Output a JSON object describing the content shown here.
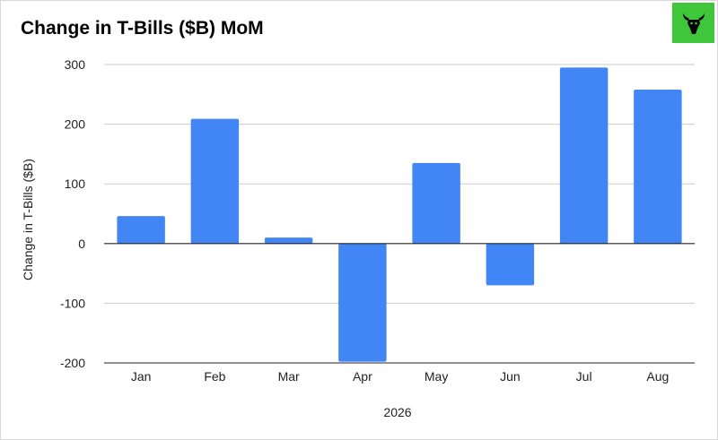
{
  "colors": {
    "bar": "#4285f4",
    "grid": "#cccccc",
    "axis": "#222222",
    "logo_bg": "#3fc63a"
  },
  "logo": {
    "icon": "bull-head-icon"
  },
  "chart_data": {
    "type": "bar",
    "title": "Change in T-Bills ($B) MoM",
    "xlabel": "2026",
    "ylabel": "Change in T-Bills ($B)",
    "categories": [
      "Jan",
      "Feb",
      "Mar",
      "Apr",
      "May",
      "Jun",
      "Jul",
      "Aug"
    ],
    "values": [
      46,
      209,
      10,
      -198,
      135,
      -70,
      295,
      258
    ],
    "yticks": [
      300,
      200,
      100,
      0,
      -100,
      -200
    ],
    "ytick_labels": [
      "300",
      "200",
      "100",
      "0",
      "-100",
      "-200"
    ],
    "ylim": [
      -200,
      300
    ],
    "grid": true,
    "legend": "none"
  }
}
